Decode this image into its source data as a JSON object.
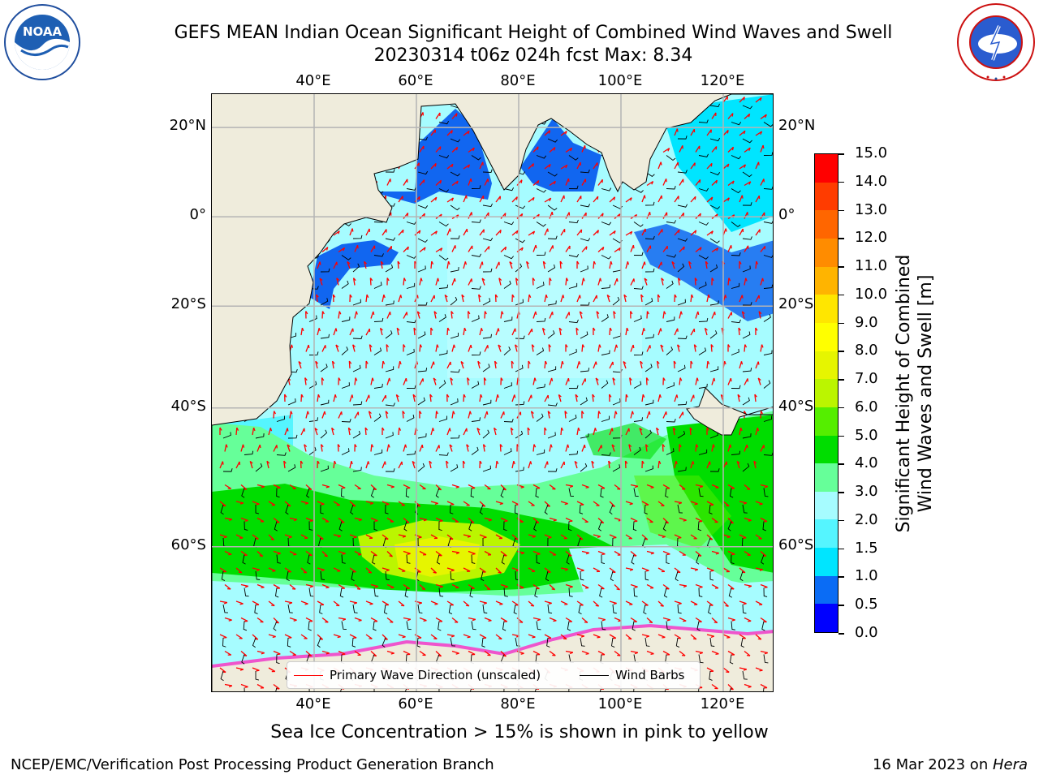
{
  "title": {
    "line1": "GEFS MEAN Indian Ocean Significant Height of Combined Wind Waves and Swell",
    "line2": "20230314 t06z 024h fcst   Max: 8.34"
  },
  "logos": {
    "left": {
      "name": "noaa-logo",
      "text": "NOAA",
      "ring_text": "NATIONAL OCEANIC AND ATMOSPHERIC ADMINISTRATION · U.S. DEPARTMENT OF COMMERCE"
    },
    "right": {
      "name": "nws-logo",
      "ring_text": "NATIONAL WEATHER SERVICE"
    }
  },
  "map": {
    "lon_range": [
      20,
      130
    ],
    "lat_range": [
      -73,
      27
    ],
    "lon_ticks": [
      "40°E",
      "60°E",
      "80°E",
      "100°E",
      "120°E"
    ],
    "lat_ticks": [
      "20°N",
      "0°",
      "20°S",
      "40°S",
      "60°S"
    ],
    "land_color": "#efecdc",
    "grid_color": "#b4b4b4"
  },
  "colorbar": {
    "title_line1": "Significant Height of Combined",
    "title_line2": "Wind Waves and Swell [m]",
    "labels": [
      "0.0",
      "0.5",
      "1.0",
      "1.5",
      "2.0",
      "3.0",
      "4.0",
      "5.0",
      "6.0",
      "7.0",
      "8.0",
      "9.0",
      "10.0",
      "11.0",
      "12.0",
      "13.0",
      "14.0",
      "15.0"
    ],
    "colors": [
      "#0000ff",
      "#0a6cf5",
      "#00e5ff",
      "#55f5ff",
      "#a6fcff",
      "#66ff99",
      "#00dd00",
      "#55ee00",
      "#bbf500",
      "#e6f500",
      "#ffff00",
      "#ffe600",
      "#ffb400",
      "#ff8c00",
      "#ff6600",
      "#ff3c00",
      "#ff0000"
    ]
  },
  "legend": {
    "wave_direction": "Primary Wave Direction (unscaled)",
    "wind_barbs": "Wind Barbs",
    "wave_color": "#ff0000",
    "barb_color": "#000000"
  },
  "footnote": "Sea Ice Concentration > 15% is shown in pink to yellow",
  "footer": {
    "left": "NCEP/EMC/Verification Post Processing Product Generation Branch",
    "right_prefix": "16 Mar 2023 on ",
    "right_host": "Hera"
  }
}
